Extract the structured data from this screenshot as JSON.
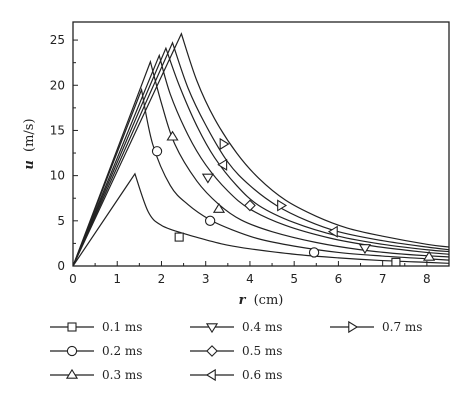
{
  "chart_data": {
    "type": "line",
    "xlabel": {
      "var": "r",
      "unit": "(cm)"
    },
    "ylabel": {
      "var": "u",
      "unit": "(m/s)"
    },
    "xlim": [
      0,
      8.5
    ],
    "ylim": [
      0,
      27
    ],
    "xticks": [
      "0",
      "1",
      "2",
      "3",
      "4",
      "5",
      "6",
      "7",
      "8"
    ],
    "yticks": [
      "0",
      "5",
      "10",
      "15",
      "20",
      "25"
    ],
    "grid": false,
    "legend_position": "bottom",
    "series": [
      {
        "name": "0.1 ms",
        "marker": "square",
        "peak": [
          1.4,
          10.2
        ],
        "x": [
          0,
          1.4,
          1.7,
          2.0,
          2.5,
          3.0,
          3.5,
          4.0,
          5.0,
          6.0,
          7.0,
          8.0,
          8.5
        ],
        "y": [
          0,
          10.2,
          6.0,
          4.5,
          3.6,
          2.9,
          2.3,
          1.9,
          1.3,
          0.9,
          0.6,
          0.4,
          0.3
        ],
        "marker_points": [
          [
            2.4,
            3.2
          ],
          [
            7.3,
            0.4
          ]
        ]
      },
      {
        "name": "0.2 ms",
        "marker": "circle",
        "peak": [
          1.55,
          19.5
        ],
        "x": [
          0,
          1.55,
          1.8,
          2.2,
          2.6,
          3.1,
          3.6,
          4.2,
          5.0,
          6.0,
          7.0,
          8.0,
          8.5
        ],
        "y": [
          0,
          19.5,
          13.5,
          8.9,
          6.8,
          5.1,
          4.0,
          3.0,
          2.2,
          1.5,
          1.1,
          0.8,
          0.65
        ],
        "marker_points": [
          [
            1.9,
            12.7
          ],
          [
            3.1,
            5.0
          ],
          [
            5.45,
            1.5
          ]
        ]
      },
      {
        "name": "0.3 ms",
        "marker": "triangle-up",
        "peak": [
          1.75,
          22.6
        ],
        "x": [
          0,
          1.75,
          2.0,
          2.3,
          2.8,
          3.3,
          3.8,
          4.5,
          5.5,
          6.5,
          7.5,
          8.5
        ],
        "y": [
          0,
          22.6,
          18.0,
          13.5,
          9.4,
          6.8,
          5.1,
          3.8,
          2.6,
          1.8,
          1.3,
          1.0
        ],
        "marker_points": [
          [
            2.25,
            14.3
          ],
          [
            3.3,
            6.3
          ],
          [
            8.05,
            1.0
          ]
        ]
      },
      {
        "name": "0.4 ms",
        "marker": "triangle-down",
        "peak": [
          1.95,
          23.3
        ],
        "x": [
          0,
          1.95,
          2.2,
          2.6,
          3.0,
          3.5,
          4.0,
          4.8,
          5.8,
          6.8,
          7.8,
          8.5
        ],
        "y": [
          0,
          23.3,
          19.0,
          14.5,
          11.2,
          8.3,
          6.3,
          4.5,
          3.1,
          2.2,
          1.6,
          1.3
        ],
        "marker_points": [
          [
            3.05,
            9.8
          ],
          [
            6.6,
            2.0
          ]
        ]
      },
      {
        "name": "0.5 ms",
        "marker": "diamond",
        "peak": [
          2.1,
          24.1
        ],
        "x": [
          0,
          2.1,
          2.4,
          2.8,
          3.2,
          3.7,
          4.2,
          5.0,
          6.0,
          7.0,
          8.0,
          8.5
        ],
        "y": [
          0,
          24.1,
          20.0,
          15.5,
          12.0,
          8.9,
          6.7,
          4.8,
          3.3,
          2.4,
          1.8,
          1.6
        ],
        "marker_points": [
          [
            4.0,
            6.7
          ]
        ]
      },
      {
        "name": "0.6 ms",
        "marker": "triangle-left",
        "peak": [
          2.25,
          24.7
        ],
        "x": [
          0,
          2.25,
          2.6,
          3.0,
          3.5,
          4.0,
          4.6,
          5.3,
          6.0,
          7.0,
          8.0,
          8.5
        ],
        "y": [
          0,
          24.7,
          19.7,
          15.6,
          11.5,
          8.9,
          6.7,
          5.0,
          3.8,
          2.8,
          2.1,
          1.8
        ],
        "marker_points": [
          [
            3.4,
            11.2
          ],
          [
            5.9,
            3.8
          ]
        ]
      },
      {
        "name": "0.7 ms",
        "marker": "triangle-right",
        "peak": [
          2.45,
          25.7
        ],
        "x": [
          0,
          2.45,
          2.8,
          3.2,
          3.7,
          4.2,
          4.8,
          5.5,
          6.2,
          7.0,
          8.0,
          8.5
        ],
        "y": [
          0,
          25.7,
          20.5,
          16.3,
          12.5,
          9.7,
          7.3,
          5.5,
          4.2,
          3.3,
          2.4,
          2.1
        ],
        "marker_points": [
          [
            3.4,
            13.5
          ],
          [
            4.7,
            6.7
          ]
        ]
      }
    ]
  }
}
